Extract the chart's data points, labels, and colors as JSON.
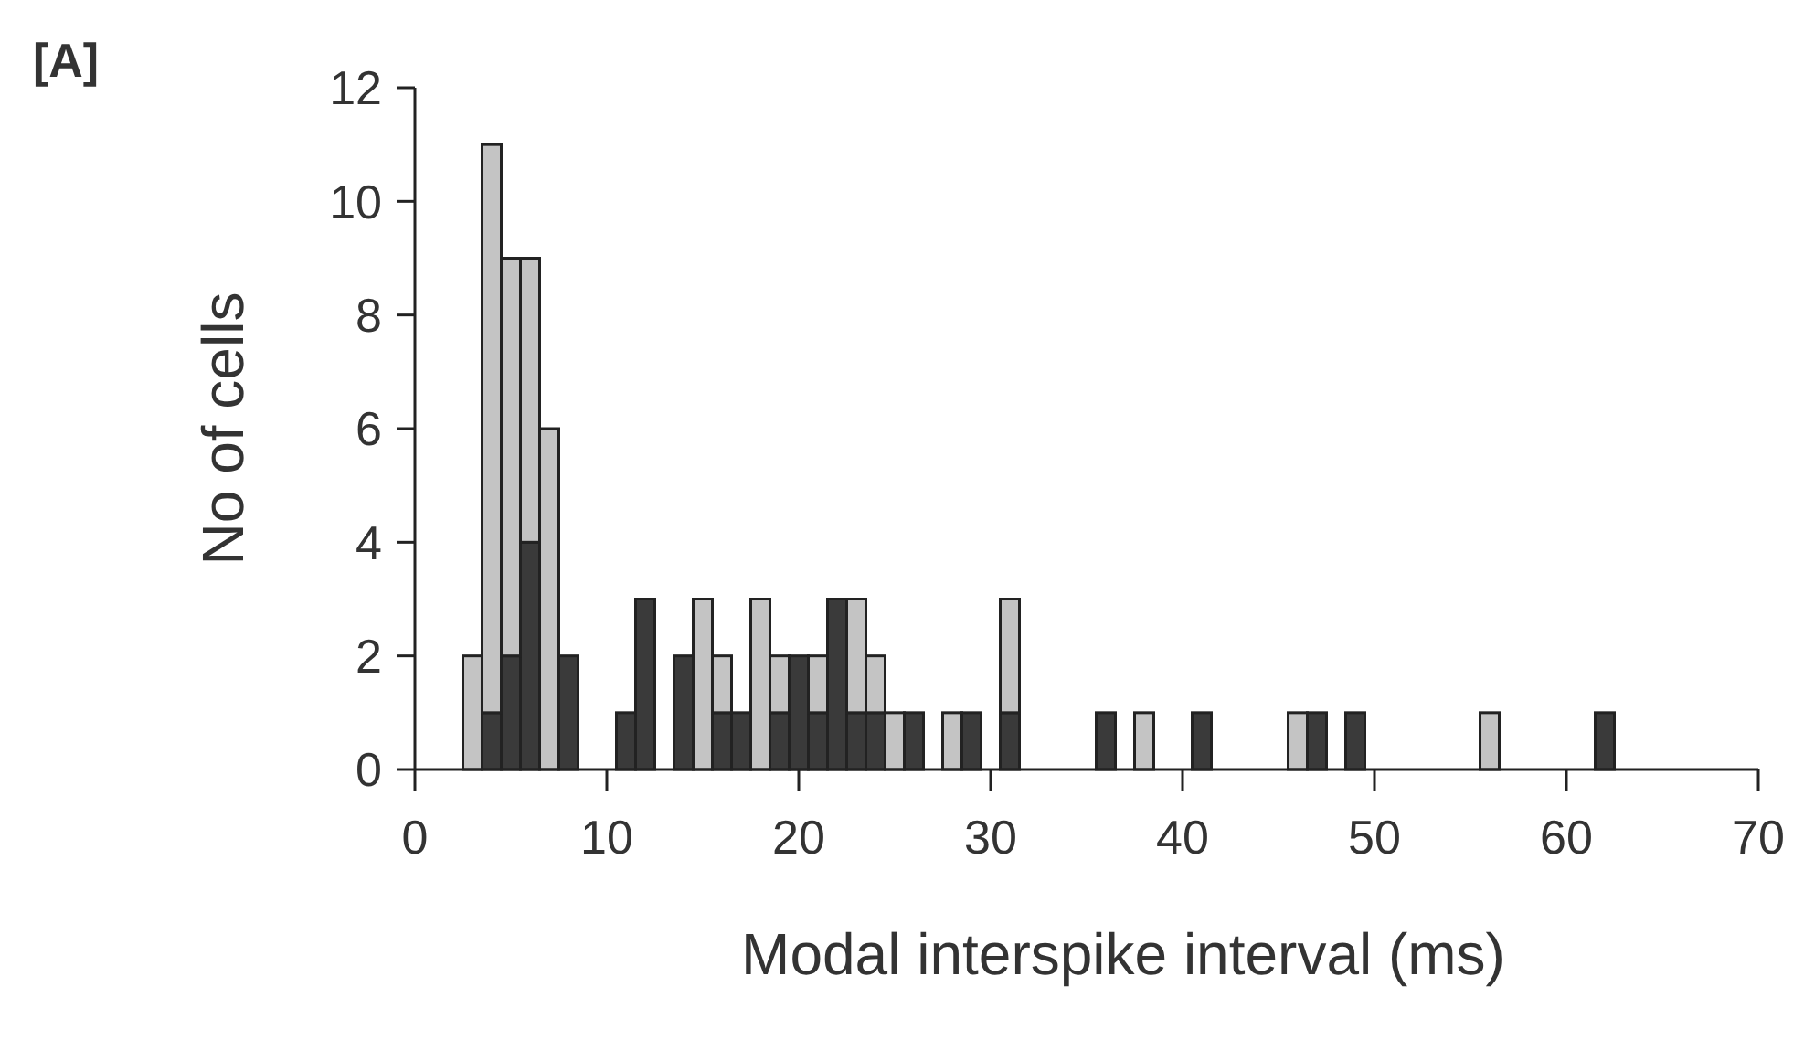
{
  "chart_data": {
    "type": "bar",
    "title": "[A]",
    "xlabel": "Modal interspike interval (ms)",
    "ylabel": "No of cells",
    "x": [
      3,
      4,
      5,
      6,
      7,
      8,
      11,
      12,
      14,
      15,
      16,
      17,
      18,
      19,
      20,
      21,
      22,
      23,
      24,
      25,
      26,
      28,
      29,
      31,
      36,
      38,
      41,
      46,
      47,
      49,
      56,
      62
    ],
    "stacked": true,
    "series": [
      {
        "color": "#3a3a3a",
        "values": [
          0,
          1,
          2,
          4,
          0,
          2,
          1,
          3,
          2,
          0,
          1,
          1,
          0,
          1,
          2,
          1,
          3,
          1,
          1,
          0,
          1,
          0,
          1,
          1,
          1,
          0,
          1,
          0,
          1,
          1,
          0,
          1
        ]
      },
      {
        "color": "#c4c4c4",
        "values": [
          2,
          10,
          7,
          5,
          6,
          0,
          0,
          0,
          0,
          3,
          1,
          0,
          3,
          1,
          0,
          1,
          0,
          2,
          1,
          1,
          0,
          1,
          0,
          2,
          0,
          1,
          0,
          1,
          0,
          0,
          1,
          0
        ]
      }
    ],
    "xlim": [
      0,
      70
    ],
    "xticks": [
      0,
      10,
      20,
      30,
      40,
      50,
      60,
      70
    ],
    "ylim": [
      0,
      12
    ],
    "yticks": [
      0,
      2,
      4,
      6,
      8,
      10,
      12
    ]
  }
}
